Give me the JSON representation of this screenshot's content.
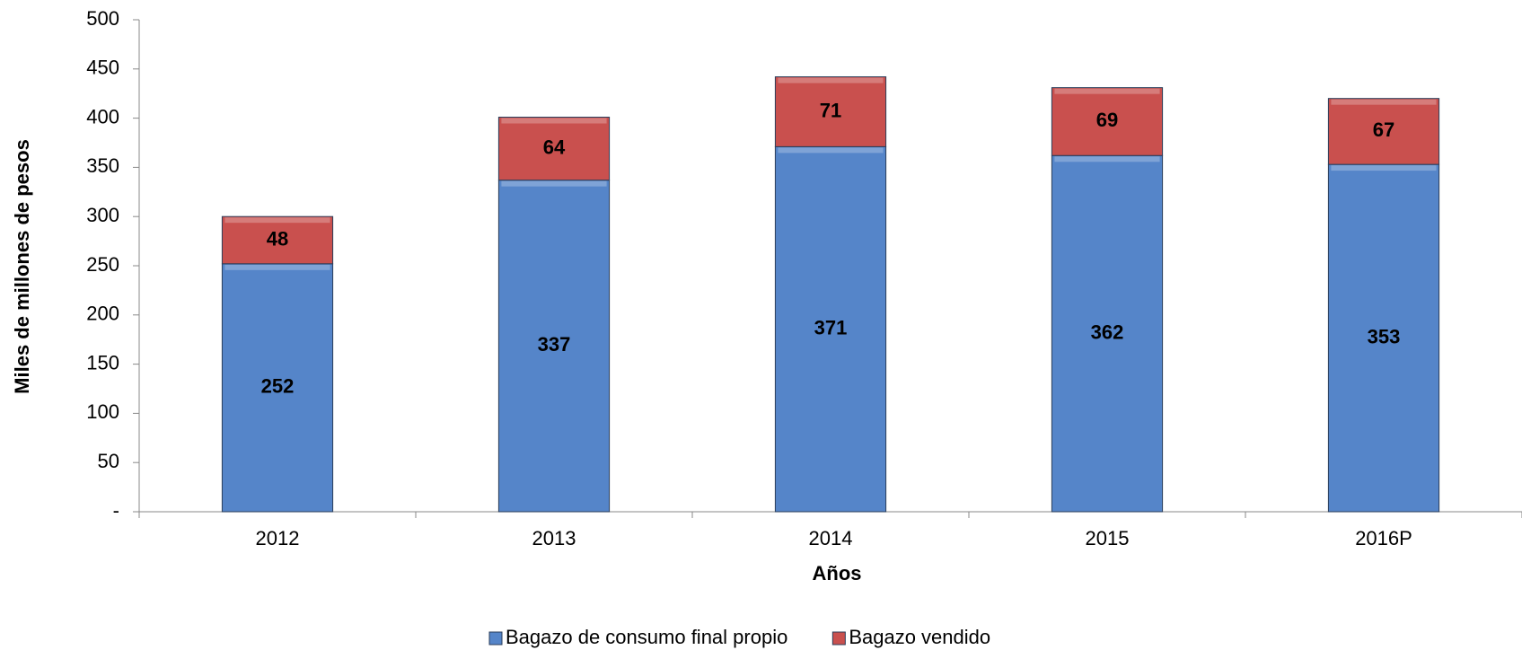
{
  "chart_data": {
    "type": "bar",
    "stacked": true,
    "y_label": "Miles de millones de pesos",
    "x_label": "Años",
    "categories": [
      "2012",
      "2013",
      "2014",
      "2015",
      "2016P"
    ],
    "series": [
      {
        "name": "Bagazo de consumo final propio",
        "color": "#5585c9",
        "values": [
          252,
          337,
          371,
          362,
          353
        ]
      },
      {
        "name": "Bagazo vendido",
        "color": "#c9504e",
        "values": [
          48,
          64,
          71,
          69,
          67
        ]
      }
    ],
    "ylim": [
      0,
      500
    ],
    "yticks": [
      {
        "value": 0,
        "label": "-"
      },
      50,
      100,
      150,
      200,
      250,
      300,
      350,
      400,
      450,
      500
    ],
    "grid": false,
    "legend": "bottom"
  }
}
